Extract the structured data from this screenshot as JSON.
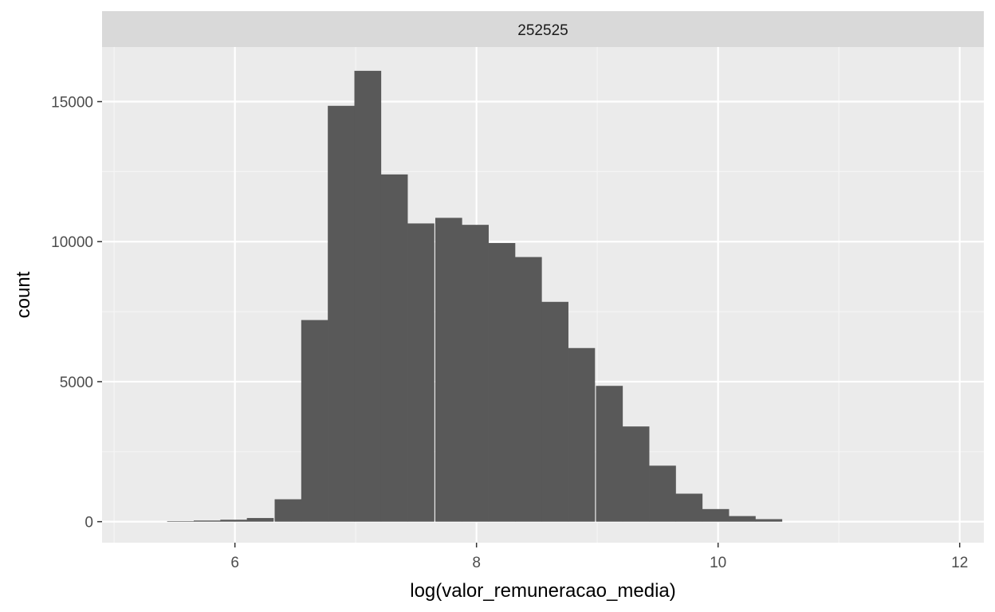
{
  "chart_data": {
    "type": "bar",
    "facet_label": "252525",
    "xlabel": "log(valor_remuneracao_media)",
    "ylabel": "count",
    "xlim": [
      4.9,
      12.2
    ],
    "ylim": [
      -750,
      16950
    ],
    "x_ticks": [
      6,
      8,
      10,
      12
    ],
    "x_minor_ticks": [
      5,
      7,
      9,
      11
    ],
    "y_ticks": [
      0,
      5000,
      10000,
      15000
    ],
    "y_minor_ticks": [
      2500,
      7500,
      12500
    ],
    "grid": true,
    "bin_width": 0.222,
    "bins": [
      {
        "x": 5.55,
        "count": 20
      },
      {
        "x": 5.77,
        "count": 40
      },
      {
        "x": 5.99,
        "count": 70
      },
      {
        "x": 6.21,
        "count": 130
      },
      {
        "x": 6.44,
        "count": 800
      },
      {
        "x": 6.66,
        "count": 7200
      },
      {
        "x": 6.88,
        "count": 14850
      },
      {
        "x": 7.1,
        "count": 16100
      },
      {
        "x": 7.32,
        "count": 12400
      },
      {
        "x": 7.54,
        "count": 10650
      },
      {
        "x": 7.77,
        "count": 10850
      },
      {
        "x": 7.99,
        "count": 10600
      },
      {
        "x": 8.21,
        "count": 9950
      },
      {
        "x": 8.43,
        "count": 9450
      },
      {
        "x": 8.65,
        "count": 7850
      },
      {
        "x": 8.87,
        "count": 6200
      },
      {
        "x": 9.1,
        "count": 4850
      },
      {
        "x": 9.32,
        "count": 3400
      },
      {
        "x": 9.54,
        "count": 2000
      },
      {
        "x": 9.76,
        "count": 1000
      },
      {
        "x": 9.98,
        "count": 450
      },
      {
        "x": 10.2,
        "count": 200
      },
      {
        "x": 10.42,
        "count": 90
      }
    ],
    "colors": {
      "panel_bg": "#ebebeb",
      "strip_bg": "#d9d9d9",
      "grid_major": "#ffffff",
      "grid_minor": "#f5f5f5",
      "bar_fill": "#595959",
      "tick": "#333333"
    }
  }
}
